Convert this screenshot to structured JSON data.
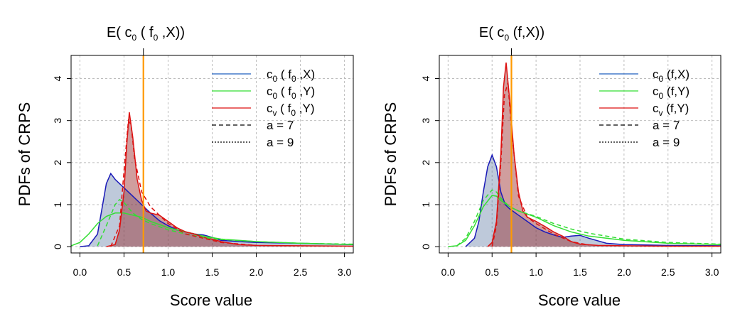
{
  "chart_data": [
    {
      "type": "area",
      "title": {
        "prefix": "E( c",
        "sub": "0",
        "mid": " ( f",
        "sub2": "0",
        "suffix": " ,X))"
      },
      "xlabel": "Score value",
      "ylabel": "PDFs of CRPS",
      "xlim": [
        -0.1,
        3.1
      ],
      "ylim": [
        -0.15,
        4.55
      ],
      "xticks": [
        "0.0",
        "0.5",
        "1.0",
        "1.5",
        "2.0",
        "2.5",
        "3.0"
      ],
      "yticks": [
        "0",
        "1",
        "2",
        "3",
        "4"
      ],
      "vline": {
        "x": 0.72,
        "color": "#ff9900"
      },
      "legend": {
        "position": "top-right",
        "entries": [
          {
            "base": "c",
            "sub": "0",
            "text": " ( f",
            "sub2": "0",
            "tail": " ,X)",
            "color": "#1f5fbf",
            "dash": "solid"
          },
          {
            "base": "c",
            "sub": "0",
            "text": " ( f",
            "sub2": "0",
            "tail": " ,Y)",
            "color": "#33dd33",
            "dash": "solid"
          },
          {
            "base": "c",
            "sub": "v",
            "text": " ( f",
            "sub2": "0",
            "tail": " ,Y)",
            "color": "#dd1111",
            "dash": "solid"
          },
          {
            "base": "a = 7",
            "sub": "",
            "text": "",
            "sub2": "",
            "tail": "",
            "color": "#000000",
            "dash": "dashed"
          },
          {
            "base": "a = 9",
            "sub": "",
            "text": "",
            "sub2": "",
            "tail": "",
            "color": "#000000",
            "dash": "dotted"
          }
        ]
      },
      "series": [
        {
          "name": "c0 (f0,X)",
          "color": "#1a1ab8",
          "fill": "rgba(70,100,150,0.35)",
          "x": [
            0.0,
            0.1,
            0.2,
            0.25,
            0.3,
            0.35,
            0.4,
            0.45,
            0.5,
            0.55,
            0.6,
            0.7,
            0.8,
            0.9,
            1.0,
            1.1,
            1.2,
            1.3,
            1.4,
            1.5,
            1.6,
            1.8,
            2.0,
            2.5,
            3.1
          ],
          "y": [
            0,
            0.02,
            0.3,
            0.9,
            1.5,
            1.74,
            1.6,
            1.5,
            1.4,
            1.3,
            1.2,
            1.0,
            0.8,
            0.62,
            0.5,
            0.4,
            0.35,
            0.3,
            0.28,
            0.22,
            0.15,
            0.12,
            0.1,
            0.08,
            0.05
          ]
        },
        {
          "name": "c0 (f0,Y)",
          "color": "#33dd33",
          "fill": "none",
          "x": [
            -0.1,
            0.0,
            0.1,
            0.2,
            0.3,
            0.4,
            0.5,
            0.6,
            0.7,
            0.8,
            1.0,
            1.2,
            1.4,
            1.6,
            2.0,
            2.5,
            3.1
          ],
          "y": [
            0.02,
            0.1,
            0.3,
            0.55,
            0.72,
            0.8,
            0.8,
            0.75,
            0.7,
            0.6,
            0.45,
            0.35,
            0.25,
            0.18,
            0.12,
            0.08,
            0.05
          ]
        },
        {
          "name": "cv (f0,Y)",
          "color": "#dd1111",
          "fill": "rgba(150,40,40,0.45)",
          "x": [
            0.3,
            0.4,
            0.45,
            0.5,
            0.53,
            0.56,
            0.6,
            0.65,
            0.7,
            0.75,
            0.8,
            0.9,
            1.0,
            1.1,
            1.2,
            1.3,
            1.4,
            1.5,
            1.6,
            1.8,
            2.0,
            2.5,
            3.1
          ],
          "y": [
            0,
            0.05,
            0.4,
            1.3,
            2.4,
            3.2,
            2.6,
            1.6,
            1.1,
            0.85,
            0.8,
            0.75,
            0.6,
            0.45,
            0.35,
            0.3,
            0.22,
            0.18,
            0.12,
            0.05,
            0.03,
            0.02,
            0.01
          ]
        },
        {
          "name": "c0 (f0,Y) a=7",
          "color": "#33dd33",
          "dash": "6 4",
          "fill": "none",
          "x": [
            0.2,
            0.3,
            0.4,
            0.45,
            0.5,
            0.6,
            0.7,
            0.8,
            1.0,
            1.2,
            1.4,
            1.6,
            2.0,
            2.5,
            3.1
          ],
          "y": [
            0.02,
            0.5,
            1.0,
            1.12,
            1.05,
            0.8,
            0.65,
            0.55,
            0.4,
            0.3,
            0.22,
            0.17,
            0.12,
            0.08,
            0.06
          ]
        },
        {
          "name": "cv (f0,Y) a=7",
          "color": "#dd1111",
          "dash": "6 4",
          "fill": "none",
          "x": [
            0.35,
            0.45,
            0.5,
            0.55,
            0.58,
            0.62,
            0.7,
            0.8,
            0.9,
            1.0,
            1.2,
            1.4,
            1.6,
            2.0
          ],
          "y": [
            0,
            0.5,
            1.8,
            3.0,
            2.9,
            2.1,
            1.3,
            0.95,
            0.75,
            0.55,
            0.3,
            0.2,
            0.1,
            0.03
          ]
        }
      ]
    },
    {
      "type": "area",
      "title": {
        "prefix": "E( c",
        "sub": "0",
        "mid": " (f,X))",
        "sub2": "",
        "suffix": ""
      },
      "xlabel": "Score value",
      "ylabel": "PDFs of CRPS",
      "xlim": [
        -0.1,
        3.1
      ],
      "ylim": [
        -0.15,
        4.55
      ],
      "xticks": [
        "0.0",
        "0.5",
        "1.0",
        "1.5",
        "2.0",
        "2.5",
        "3.0"
      ],
      "yticks": [
        "0",
        "1",
        "2",
        "3",
        "4"
      ],
      "vline": {
        "x": 0.72,
        "color": "#ff9900"
      },
      "legend": {
        "position": "top-right",
        "entries": [
          {
            "base": "c",
            "sub": "0",
            "text": " (f,X)",
            "sub2": "",
            "tail": "",
            "color": "#1f5fbf",
            "dash": "solid"
          },
          {
            "base": "c",
            "sub": "0",
            "text": " (f,Y)",
            "sub2": "",
            "tail": "",
            "color": "#33dd33",
            "dash": "solid"
          },
          {
            "base": "c",
            "sub": "v",
            "text": " (f,Y)",
            "sub2": "",
            "tail": "",
            "color": "#dd1111",
            "dash": "solid"
          },
          {
            "base": "a = 7",
            "sub": "",
            "text": "",
            "sub2": "",
            "tail": "",
            "color": "#000000",
            "dash": "dashed"
          },
          {
            "base": "a = 9",
            "sub": "",
            "text": "",
            "sub2": "",
            "tail": "",
            "color": "#000000",
            "dash": "dotted"
          }
        ]
      },
      "series": [
        {
          "name": "c0 (f,X)",
          "color": "#1a1ab8",
          "fill": "rgba(70,100,150,0.35)",
          "x": [
            0.2,
            0.3,
            0.35,
            0.4,
            0.45,
            0.5,
            0.55,
            0.6,
            0.65,
            0.7,
            0.8,
            0.9,
            1.0,
            1.1,
            1.2,
            1.3,
            1.4,
            1.5,
            1.6,
            1.8,
            2.0,
            2.5,
            3.1
          ],
          "y": [
            0,
            0.2,
            0.6,
            1.3,
            1.9,
            2.18,
            1.9,
            1.3,
            1.0,
            0.9,
            0.75,
            0.6,
            0.45,
            0.35,
            0.28,
            0.22,
            0.25,
            0.27,
            0.2,
            0.08,
            0.05,
            0.03,
            0.02
          ]
        },
        {
          "name": "c0 (f,Y)",
          "color": "#33dd33",
          "fill": "none",
          "x": [
            0.0,
            0.1,
            0.2,
            0.3,
            0.4,
            0.5,
            0.55,
            0.6,
            0.7,
            0.8,
            1.0,
            1.2,
            1.4,
            1.6,
            2.0,
            2.5,
            3.1
          ],
          "y": [
            0,
            0.02,
            0.15,
            0.5,
            0.95,
            1.22,
            1.2,
            1.1,
            0.95,
            0.85,
            0.7,
            0.5,
            0.35,
            0.25,
            0.15,
            0.08,
            0.05
          ]
        },
        {
          "name": "cv (f,Y)",
          "color": "#dd1111",
          "fill": "rgba(150,40,40,0.45)",
          "x": [
            0.45,
            0.5,
            0.55,
            0.6,
            0.63,
            0.66,
            0.7,
            0.75,
            0.8,
            0.85,
            0.9,
            1.0,
            1.1,
            1.2,
            1.3,
            1.4,
            1.5,
            1.7,
            2.0,
            2.5,
            3.1
          ],
          "y": [
            0,
            0.1,
            0.6,
            2.2,
            3.8,
            4.38,
            3.5,
            2.2,
            1.3,
            0.85,
            0.7,
            0.6,
            0.48,
            0.35,
            0.25,
            0.12,
            0.06,
            0.03,
            0.02,
            0.01,
            0.01
          ]
        },
        {
          "name": "c0 (f,Y) a=7",
          "color": "#33dd33",
          "dash": "6 4",
          "fill": "none",
          "x": [
            0.1,
            0.2,
            0.3,
            0.4,
            0.5,
            0.55,
            0.6,
            0.7,
            0.8,
            1.0,
            1.2,
            1.4,
            1.6,
            2.0,
            2.5,
            3.1
          ],
          "y": [
            0.02,
            0.2,
            0.6,
            1.1,
            1.35,
            1.3,
            1.15,
            0.95,
            0.85,
            0.72,
            0.55,
            0.42,
            0.32,
            0.18,
            0.1,
            0.06
          ]
        },
        {
          "name": "cv (f,Y) a=7",
          "color": "#dd1111",
          "dash": "6 4",
          "fill": "none",
          "x": [
            0.5,
            0.55,
            0.6,
            0.64,
            0.68,
            0.72,
            0.8,
            0.9,
            1.0,
            1.2,
            1.4,
            1.6
          ],
          "y": [
            0,
            0.5,
            2.0,
            3.6,
            3.9,
            2.8,
            1.2,
            0.7,
            0.55,
            0.3,
            0.12,
            0.04
          ]
        }
      ]
    }
  ]
}
